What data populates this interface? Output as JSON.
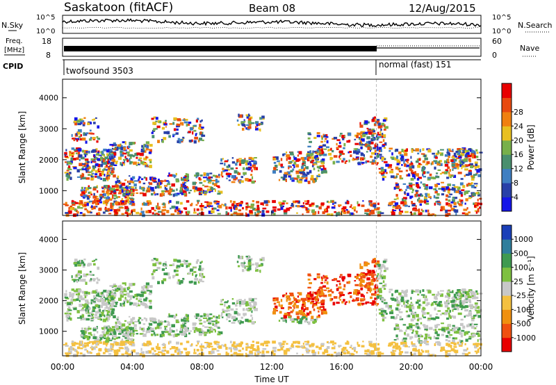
{
  "header": {
    "station": "Saskatoon (fitACF)",
    "beam": "Beam 08",
    "date": "12/Aug/2015"
  },
  "noise_panel": {
    "left_label_1": "N.Sky",
    "left_tick_top": "10^5",
    "left_tick_bottom": "10^0",
    "right_label_1": "N.Search",
    "right_tick_top": "10^5",
    "right_tick_bottom": "10^0"
  },
  "freq_panel": {
    "left_label_1": "Freq.",
    "left_label_2": "[MHz]",
    "left_tick_top": "18",
    "left_tick_bottom": "8",
    "right_label": "Nave",
    "right_tick_top": "60",
    "right_tick_bottom": "0"
  },
  "cpid_panel": {
    "label": "CPID",
    "mode_1": "twofsound 3503",
    "mode_2": "normal (fast) 151"
  },
  "chart_data": [
    {
      "type": "heatmap",
      "quantity": "Power",
      "ylabel": "Slant Range [km]",
      "yticks": [
        "1000",
        "2000",
        "3000",
        "4000"
      ],
      "ylim": [
        200,
        4600
      ],
      "xlim": [
        0,
        24
      ],
      "colorbar_label": "Power [dB]",
      "colorbar_ticks": [
        "4",
        "8",
        "12",
        "16",
        "20",
        "24",
        "28"
      ],
      "colorbar_colors": [
        "#1515e8",
        "#2840a8",
        "#3f7fc2",
        "#4a8f6e",
        "#78b04a",
        "#e8c020",
        "#f08010",
        "#e84a10",
        "#e80000"
      ],
      "mode_change_hour": 18
    },
    {
      "type": "heatmap",
      "quantity": "Velocity",
      "ylabel": "Slant Range [km]",
      "yticks": [
        "1000",
        "2000",
        "3000",
        "4000"
      ],
      "ylim": [
        200,
        4600
      ],
      "xlim": [
        0,
        24
      ],
      "xlabel": "Time UT",
      "xticks": [
        "00:00",
        "04:00",
        "08:00",
        "12:00",
        "16:00",
        "20:00",
        "00:00"
      ],
      "colorbar_label": "Velocity [m s⁻¹]",
      "colorbar_ticks": [
        "1000",
        "500",
        "100",
        "25",
        "-25",
        "-100",
        "-500",
        "-1000"
      ],
      "colorbar_colors": [
        "#1a3fb8",
        "#2f7e9c",
        "#3f9a50",
        "#7ec040",
        "#c8c8c8",
        "#f4c040",
        "#f09010",
        "#f05010",
        "#e80000"
      ],
      "mode_change_hour": 18
    }
  ]
}
